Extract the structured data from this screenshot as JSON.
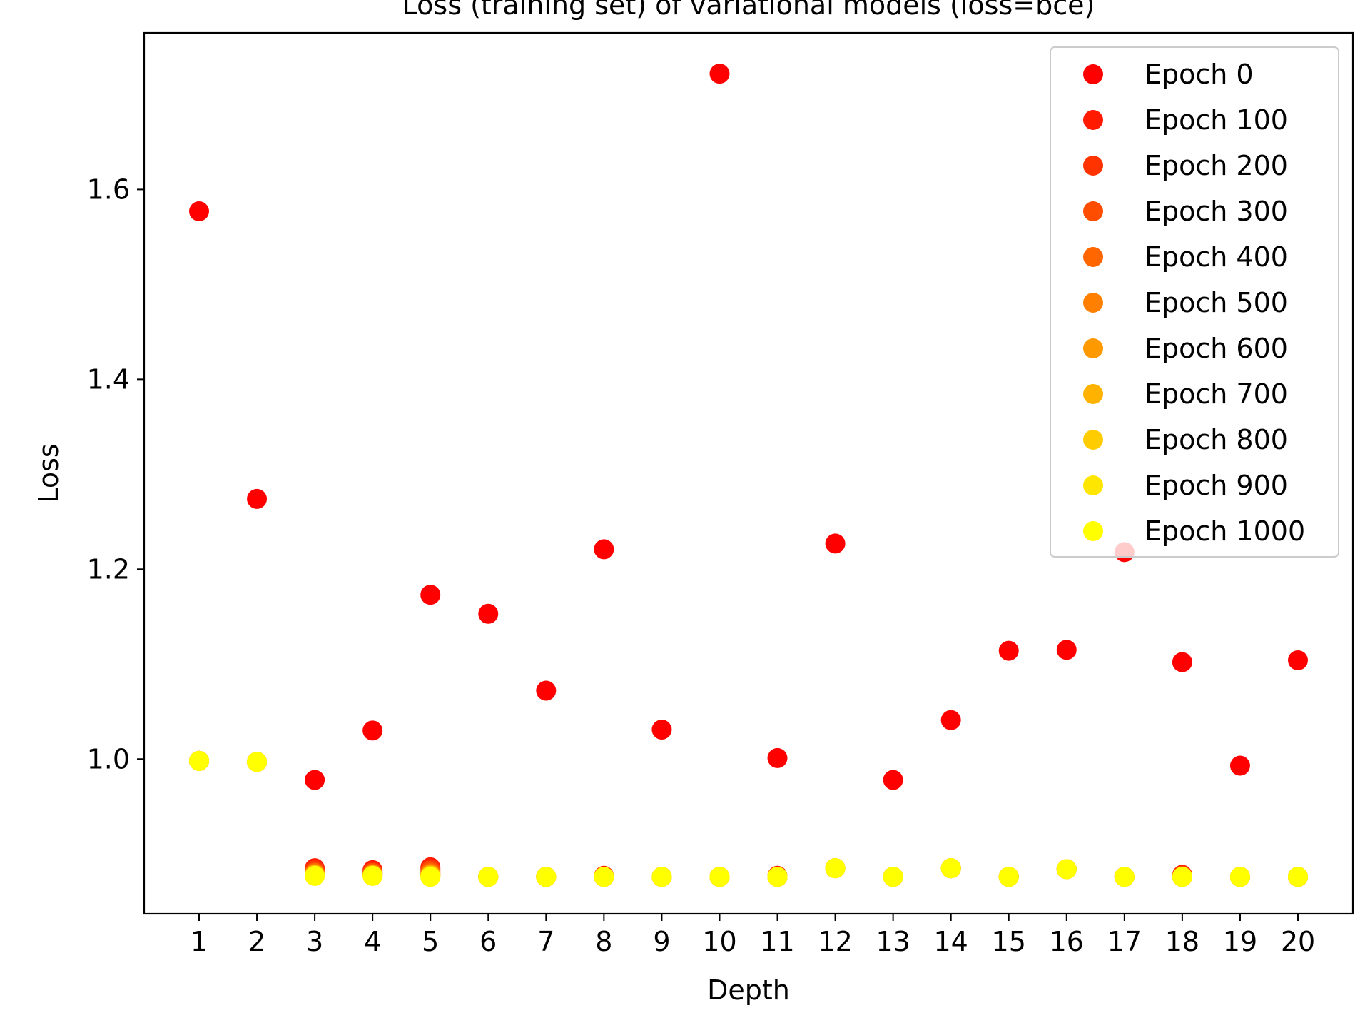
{
  "chart_data": {
    "type": "scatter",
    "title": "Loss (training set) of variational models (loss=bce)",
    "xlabel": "Depth",
    "ylabel": "Loss",
    "x": [
      1,
      2,
      3,
      4,
      5,
      6,
      7,
      8,
      9,
      10,
      11,
      12,
      13,
      14,
      15,
      16,
      17,
      18,
      19,
      20
    ],
    "x_tick_labels": [
      "1",
      "2",
      "3",
      "4",
      "5",
      "6",
      "7",
      "8",
      "9",
      "10",
      "11",
      "12",
      "13",
      "14",
      "15",
      "16",
      "17",
      "18",
      "19",
      "20"
    ],
    "xlim": [
      0.05,
      20.95
    ],
    "ylim": [
      0.837,
      1.765
    ],
    "y_ticks": [
      1.0,
      1.2,
      1.4,
      1.6
    ],
    "y_tick_labels": [
      "1.0",
      "1.2",
      "1.4",
      "1.6"
    ],
    "grid": false,
    "legend_position": "top-right",
    "series": [
      {
        "name": "Epoch 0",
        "color": "#ff0000",
        "values": [
          1.577,
          1.274,
          0.978,
          1.03,
          1.173,
          1.153,
          1.072,
          1.221,
          1.031,
          1.722,
          1.001,
          1.227,
          0.978,
          1.041,
          1.114,
          1.115,
          1.218,
          1.102,
          0.993,
          1.104
        ]
      },
      {
        "name": "Epoch 100",
        "color": "#ff1a00",
        "values": [
          0.998,
          0.997,
          0.885,
          0.883,
          0.886,
          0.876,
          0.876,
          0.877,
          0.876,
          0.876,
          0.877,
          0.885,
          0.876,
          0.885,
          0.876,
          0.884,
          0.876,
          0.878,
          0.876,
          0.876
        ]
      },
      {
        "name": "Epoch 200",
        "color": "#ff3300",
        "values": [
          0.998,
          0.997,
          0.883,
          0.881,
          0.884,
          0.876,
          0.876,
          0.876,
          0.876,
          0.876,
          0.876,
          0.885,
          0.876,
          0.885,
          0.876,
          0.884,
          0.876,
          0.877,
          0.876,
          0.876
        ]
      },
      {
        "name": "Epoch 300",
        "color": "#ff4d00",
        "values": [
          0.998,
          0.997,
          0.881,
          0.88,
          0.882,
          0.876,
          0.876,
          0.876,
          0.876,
          0.876,
          0.876,
          0.885,
          0.876,
          0.885,
          0.876,
          0.884,
          0.876,
          0.877,
          0.876,
          0.876
        ]
      },
      {
        "name": "Epoch 400",
        "color": "#ff6600",
        "values": [
          0.998,
          0.997,
          0.88,
          0.879,
          0.88,
          0.876,
          0.876,
          0.876,
          0.876,
          0.876,
          0.876,
          0.885,
          0.876,
          0.885,
          0.876,
          0.884,
          0.876,
          0.876,
          0.876,
          0.876
        ]
      },
      {
        "name": "Epoch 500",
        "color": "#ff8000",
        "values": [
          0.998,
          0.997,
          0.879,
          0.878,
          0.879,
          0.876,
          0.876,
          0.876,
          0.876,
          0.876,
          0.876,
          0.885,
          0.876,
          0.885,
          0.876,
          0.884,
          0.876,
          0.876,
          0.876,
          0.876
        ]
      },
      {
        "name": "Epoch 600",
        "color": "#ff9900",
        "values": [
          0.998,
          0.997,
          0.878,
          0.878,
          0.878,
          0.876,
          0.876,
          0.876,
          0.876,
          0.876,
          0.876,
          0.885,
          0.876,
          0.885,
          0.876,
          0.884,
          0.876,
          0.876,
          0.876,
          0.876
        ]
      },
      {
        "name": "Epoch 700",
        "color": "#ffb300",
        "values": [
          0.998,
          0.997,
          0.878,
          0.877,
          0.877,
          0.876,
          0.876,
          0.876,
          0.876,
          0.876,
          0.876,
          0.885,
          0.876,
          0.885,
          0.876,
          0.884,
          0.876,
          0.876,
          0.876,
          0.876
        ]
      },
      {
        "name": "Epoch 800",
        "color": "#ffcc00",
        "values": [
          0.998,
          0.997,
          0.877,
          0.877,
          0.877,
          0.876,
          0.876,
          0.876,
          0.876,
          0.876,
          0.876,
          0.885,
          0.876,
          0.885,
          0.876,
          0.884,
          0.876,
          0.876,
          0.876,
          0.876
        ]
      },
      {
        "name": "Epoch 900",
        "color": "#ffe600",
        "values": [
          0.998,
          0.997,
          0.877,
          0.877,
          0.876,
          0.876,
          0.876,
          0.876,
          0.876,
          0.876,
          0.876,
          0.885,
          0.876,
          0.885,
          0.876,
          0.884,
          0.876,
          0.876,
          0.876,
          0.876
        ]
      },
      {
        "name": "Epoch 1000",
        "color": "#ffff00",
        "values": [
          0.998,
          0.997,
          0.877,
          0.877,
          0.876,
          0.876,
          0.876,
          0.876,
          0.876,
          0.876,
          0.876,
          0.885,
          0.876,
          0.885,
          0.876,
          0.884,
          0.876,
          0.876,
          0.876,
          0.876
        ]
      }
    ]
  }
}
